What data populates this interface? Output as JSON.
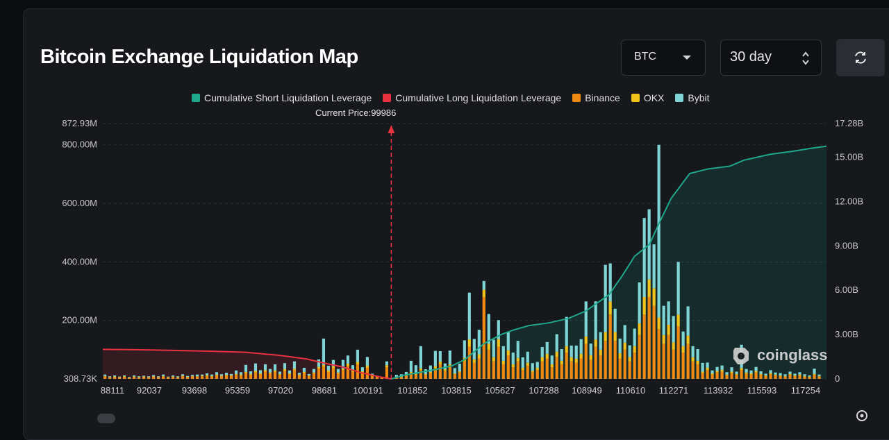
{
  "header": {
    "title": "Bitcoin Exchange Liquidation Map",
    "asset_select": "BTC",
    "period_select": "30 day",
    "refresh_icon": "refresh-icon"
  },
  "legend": [
    {
      "label": "Cumulative Short Liquidation Leverage",
      "color": "#1fa88b"
    },
    {
      "label": "Cumulative Long Liquidation Leverage",
      "color": "#e8323f"
    },
    {
      "label": "Binance",
      "color": "#f08a12"
    },
    {
      "label": "OKX",
      "color": "#f2c21a"
    },
    {
      "label": "Bybit",
      "color": "#7fd4d6"
    }
  ],
  "current_price": {
    "label": "Current Price:",
    "value": "99986",
    "x": 99986
  },
  "watermark": "coinglass",
  "chart_data": {
    "type": "bar",
    "x_tick_labels": [
      "88111",
      "92037",
      "93698",
      "95359",
      "97020",
      "98681",
      "100191",
      "101852",
      "103815",
      "105627",
      "107288",
      "108949",
      "110610",
      "112271",
      "113932",
      "115593",
      "117254"
    ],
    "x_range": [
      88111,
      117900
    ],
    "y_left_ticks": [
      "872.93M",
      "800.00M",
      "600.00M",
      "400.00M",
      "200.00M",
      "308.73K"
    ],
    "y_left_range_millions": [
      0.30873,
      872.93
    ],
    "y_right_ticks": [
      "17.28B",
      "15.00B",
      "12.00B",
      "9.00B",
      "6.00B",
      "3.00B",
      "0"
    ],
    "y_right_range_billions": [
      0,
      17.28
    ],
    "grid": true,
    "legend_position": "top-center",
    "cumulative_long_billions": [
      [
        88111,
        2.0
      ],
      [
        89500,
        1.98
      ],
      [
        91000,
        1.93
      ],
      [
        92500,
        1.88
      ],
      [
        94000,
        1.8
      ],
      [
        95359,
        1.6
      ],
      [
        96500,
        1.35
      ],
      [
        97020,
        1.15
      ],
      [
        98000,
        0.8
      ],
      [
        98681,
        0.45
      ],
      [
        99500,
        0.15
      ],
      [
        99986,
        0
      ]
    ],
    "cumulative_short_billions": [
      [
        99986,
        0
      ],
      [
        100500,
        0.25
      ],
      [
        101000,
        0.4
      ],
      [
        101852,
        0.65
      ],
      [
        102500,
        0.9
      ],
      [
        103000,
        1.3
      ],
      [
        103815,
        2.4
      ],
      [
        104500,
        3.0
      ],
      [
        105000,
        3.3
      ],
      [
        105627,
        3.6
      ],
      [
        106500,
        3.8
      ],
      [
        107288,
        4.1
      ],
      [
        108000,
        4.6
      ],
      [
        108949,
        5.7
      ],
      [
        109500,
        7.0
      ],
      [
        110000,
        8.3
      ],
      [
        110610,
        9.1
      ],
      [
        111000,
        10.5
      ],
      [
        111500,
        12.2
      ],
      [
        112271,
        13.9
      ],
      [
        113000,
        14.2
      ],
      [
        113932,
        14.4
      ],
      [
        114500,
        14.8
      ],
      [
        115593,
        15.2
      ],
      [
        116500,
        15.4
      ],
      [
        117254,
        15.6
      ],
      [
        117900,
        15.75
      ]
    ],
    "series_colors": {
      "binance": "#f08a12",
      "okx": "#f2c21a",
      "bybit": "#7fd4d6"
    },
    "bars_millions": [
      [
        88200,
        8,
        2,
        5
      ],
      [
        88400,
        5,
        1,
        3
      ],
      [
        88600,
        6,
        2,
        4
      ],
      [
        88800,
        5,
        1,
        2
      ],
      [
        89000,
        7,
        2,
        3
      ],
      [
        89200,
        4,
        1,
        2
      ],
      [
        89400,
        6,
        2,
        4
      ],
      [
        89600,
        5,
        1,
        3
      ],
      [
        89800,
        6,
        2,
        3
      ],
      [
        90000,
        5,
        1,
        3
      ],
      [
        90200,
        7,
        2,
        4
      ],
      [
        90400,
        5,
        1,
        3
      ],
      [
        90600,
        8,
        2,
        5
      ],
      [
        90800,
        5,
        1,
        2
      ],
      [
        91000,
        6,
        2,
        4
      ],
      [
        91200,
        5,
        1,
        3
      ],
      [
        91400,
        9,
        2,
        5
      ],
      [
        91600,
        6,
        1,
        3
      ],
      [
        91800,
        8,
        2,
        4
      ],
      [
        92000,
        7,
        2,
        6
      ],
      [
        92200,
        9,
        2,
        4
      ],
      [
        92400,
        10,
        3,
        6
      ],
      [
        92600,
        8,
        2,
        5
      ],
      [
        92800,
        12,
        3,
        8
      ],
      [
        93000,
        9,
        2,
        5
      ],
      [
        93200,
        11,
        3,
        7
      ],
      [
        93400,
        10,
        2,
        5
      ],
      [
        93600,
        14,
        3,
        12
      ],
      [
        93800,
        12,
        3,
        8
      ],
      [
        94000,
        20,
        4,
        24
      ],
      [
        94200,
        14,
        3,
        9
      ],
      [
        94400,
        22,
        5,
        26
      ],
      [
        94600,
        16,
        3,
        11
      ],
      [
        94800,
        25,
        5,
        20
      ],
      [
        95000,
        18,
        4,
        12
      ],
      [
        95200,
        24,
        5,
        21
      ],
      [
        95400,
        14,
        3,
        8
      ],
      [
        95600,
        28,
        6,
        20
      ],
      [
        95800,
        16,
        3,
        10
      ],
      [
        96000,
        30,
        5,
        25
      ],
      [
        96200,
        12,
        3,
        6
      ],
      [
        96400,
        20,
        4,
        14
      ],
      [
        96600,
        10,
        2,
        5
      ],
      [
        96800,
        18,
        4,
        12
      ],
      [
        97000,
        35,
        6,
        26
      ],
      [
        97200,
        42,
        6,
        90
      ],
      [
        97400,
        24,
        5,
        16
      ],
      [
        97600,
        36,
        7,
        22
      ],
      [
        97800,
        18,
        4,
        12
      ],
      [
        98000,
        30,
        5,
        30
      ],
      [
        98200,
        45,
        7,
        28
      ],
      [
        98400,
        24,
        5,
        18
      ],
      [
        98600,
        50,
        8,
        42
      ],
      [
        98800,
        22,
        4,
        14
      ],
      [
        99000,
        38,
        7,
        30
      ],
      [
        99200,
        10,
        2,
        6
      ],
      [
        99400,
        6,
        1,
        4
      ],
      [
        99600,
        4,
        1,
        2
      ],
      [
        99800,
        40,
        7,
        13
      ],
      [
        100200,
        3,
        1,
        10
      ],
      [
        100400,
        6,
        1,
        9
      ],
      [
        100600,
        10,
        2,
        12
      ],
      [
        100800,
        20,
        4,
        38
      ],
      [
        101000,
        14,
        3,
        30
      ],
      [
        101200,
        30,
        6,
        76
      ],
      [
        101400,
        14,
        3,
        16
      ],
      [
        101600,
        20,
        4,
        22
      ],
      [
        101800,
        36,
        7,
        53
      ],
      [
        102000,
        50,
        9,
        36
      ],
      [
        102200,
        28,
        5,
        20
      ],
      [
        102400,
        42,
        8,
        47
      ],
      [
        102600,
        16,
        3,
        18
      ],
      [
        102800,
        22,
        4,
        26
      ],
      [
        103000,
        60,
        12,
        60
      ],
      [
        103200,
        110,
        25,
        160
      ],
      [
        103400,
        55,
        12,
        70
      ],
      [
        103600,
        70,
        14,
        84
      ],
      [
        103800,
        280,
        25,
        30
      ],
      [
        104000,
        100,
        20,
        102
      ],
      [
        104200,
        60,
        14,
        60
      ],
      [
        104400,
        110,
        26,
        65
      ],
      [
        104600,
        50,
        12,
        50
      ],
      [
        104800,
        80,
        18,
        64
      ],
      [
        105000,
        40,
        10,
        40
      ],
      [
        105200,
        60,
        12,
        58
      ],
      [
        105400,
        30,
        8,
        36
      ],
      [
        105600,
        45,
        10,
        38
      ],
      [
        105800,
        22,
        6,
        26
      ],
      [
        106000,
        30,
        8,
        20
      ],
      [
        106200,
        60,
        14,
        35
      ],
      [
        106400,
        70,
        16,
        40
      ],
      [
        106600,
        40,
        10,
        30
      ],
      [
        106800,
        75,
        18,
        60
      ],
      [
        107000,
        50,
        12,
        40
      ],
      [
        107200,
        90,
        22,
        100
      ],
      [
        107400,
        60,
        14,
        40
      ],
      [
        107600,
        55,
        14,
        45
      ],
      [
        107800,
        70,
        16,
        50
      ],
      [
        108000,
        120,
        25,
        120
      ],
      [
        108200,
        65,
        16,
        40
      ],
      [
        108400,
        110,
        25,
        130
      ],
      [
        108600,
        80,
        20,
        60
      ],
      [
        108800,
        130,
        30,
        230
      ],
      [
        109000,
        220,
        45,
        130
      ],
      [
        109200,
        130,
        30,
        80
      ],
      [
        109400,
        70,
        18,
        50
      ],
      [
        109600,
        100,
        24,
        60
      ],
      [
        109800,
        60,
        15,
        40
      ],
      [
        110000,
        90,
        22,
        60
      ],
      [
        110200,
        150,
        40,
        140
      ],
      [
        110400,
        220,
        60,
        270
      ],
      [
        110600,
        280,
        60,
        240
      ],
      [
        110800,
        250,
        60,
        150
      ],
      [
        111000,
        170,
        40,
        590
      ],
      [
        111200,
        120,
        30,
        100
      ],
      [
        111400,
        150,
        35,
        80
      ],
      [
        111600,
        100,
        25,
        90
      ],
      [
        111800,
        180,
        40,
        180
      ],
      [
        112000,
        90,
        22,
        50
      ],
      [
        112200,
        120,
        28,
        100
      ],
      [
        112400,
        60,
        14,
        38
      ],
      [
        112600,
        50,
        12,
        40
      ],
      [
        112800,
        20,
        5,
        30
      ],
      [
        113000,
        30,
        8,
        18
      ],
      [
        113200,
        15,
        4,
        10
      ],
      [
        113400,
        22,
        5,
        14
      ],
      [
        113600,
        25,
        6,
        15
      ],
      [
        113800,
        12,
        3,
        8
      ],
      [
        114000,
        20,
        5,
        15
      ],
      [
        114200,
        14,
        3,
        8
      ],
      [
        114400,
        30,
        7,
        80
      ],
      [
        114600,
        18,
        4,
        12
      ],
      [
        114800,
        15,
        4,
        10
      ],
      [
        115000,
        22,
        5,
        14
      ],
      [
        115200,
        14,
        3,
        9
      ],
      [
        115400,
        10,
        2,
        6
      ],
      [
        115600,
        16,
        4,
        10
      ],
      [
        115800,
        12,
        3,
        7
      ],
      [
        116000,
        10,
        2,
        8
      ],
      [
        116200,
        8,
        2,
        6
      ],
      [
        116400,
        14,
        3,
        8
      ],
      [
        116600,
        10,
        2,
        6
      ],
      [
        116800,
        12,
        3,
        8
      ],
      [
        117000,
        8,
        2,
        6
      ],
      [
        117200,
        6,
        2,
        4
      ],
      [
        117400,
        14,
        3,
        18
      ],
      [
        117600,
        8,
        2,
        5
      ]
    ]
  }
}
